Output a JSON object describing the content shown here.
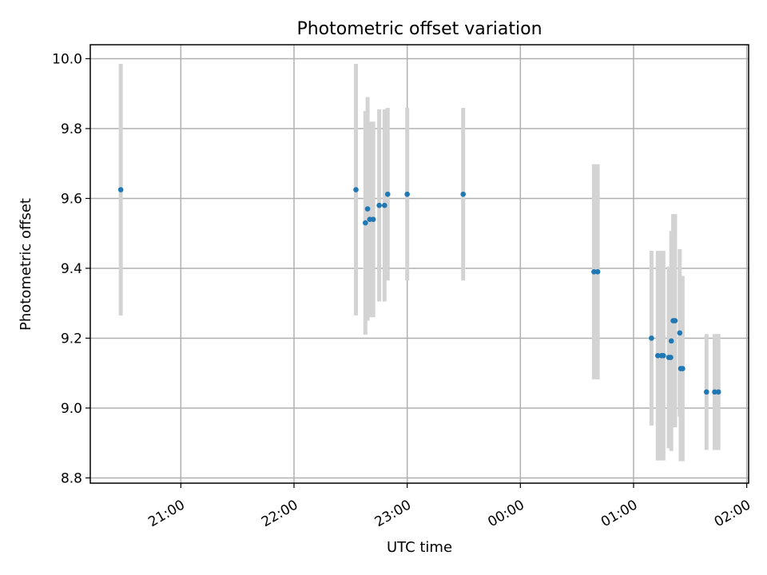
{
  "chart_data": {
    "type": "scatter",
    "title": "Photometric offset variation",
    "xlabel": "UTC time",
    "ylabel": "Photometric offset",
    "xlim": [
      "2000-01-01T20:12:00",
      "2000-01-02T02:01:00"
    ],
    "ylim": [
      8.785,
      10.04
    ],
    "grid": true,
    "xticks": [
      {
        "t": "2000-01-01T21:00:00",
        "label": "21:00"
      },
      {
        "t": "2000-01-01T22:00:00",
        "label": "22:00"
      },
      {
        "t": "2000-01-01T23:00:00",
        "label": "23:00"
      },
      {
        "t": "2000-01-02T00:00:00",
        "label": "00:00"
      },
      {
        "t": "2000-01-02T01:00:00",
        "label": "01:00"
      },
      {
        "t": "2000-01-02T02:00:00",
        "label": "02:00"
      }
    ],
    "yticks": [
      {
        "v": 8.8,
        "label": "8.8"
      },
      {
        "v": 9.0,
        "label": "9.0"
      },
      {
        "v": 9.2,
        "label": "9.2"
      },
      {
        "v": 9.4,
        "label": "9.4"
      },
      {
        "v": 9.6,
        "label": "9.6"
      },
      {
        "v": 9.8,
        "label": "9.8"
      },
      {
        "v": 10.0,
        "label": "10.0"
      }
    ],
    "points": [
      {
        "t": "2000-01-01T20:28:10",
        "y": 9.625,
        "err": 0.36
      },
      {
        "t": "2000-01-01T22:32:50",
        "y": 9.625,
        "err": 0.36
      },
      {
        "t": "2000-01-01T22:37:50",
        "y": 9.53,
        "err": 0.32
      },
      {
        "t": "2000-01-01T22:39:00",
        "y": 9.57,
        "err": 0.32
      },
      {
        "t": "2000-01-01T22:40:10",
        "y": 9.54,
        "err": 0.28
      },
      {
        "t": "2000-01-01T22:42:00",
        "y": 9.54,
        "err": 0.28
      },
      {
        "t": "2000-01-01T22:45:10",
        "y": 9.58,
        "err": 0.275
      },
      {
        "t": "2000-01-01T22:48:00",
        "y": 9.58,
        "err": 0.275
      },
      {
        "t": "2000-01-01T22:49:40",
        "y": 9.612,
        "err": 0.247
      },
      {
        "t": "2000-01-01T23:00:00",
        "y": 9.612,
        "err": 0.247
      },
      {
        "t": "2000-01-01T23:29:40",
        "y": 9.612,
        "err": 0.247
      },
      {
        "t": "2000-01-02T00:39:00",
        "y": 9.39,
        "err": 0.308
      },
      {
        "t": "2000-01-02T00:41:00",
        "y": 9.39,
        "err": 0.308
      },
      {
        "t": "2000-01-02T01:09:30",
        "y": 9.2,
        "err": 0.25
      },
      {
        "t": "2000-01-02T01:12:50",
        "y": 9.15,
        "err": 0.3
      },
      {
        "t": "2000-01-02T01:14:50",
        "y": 9.15,
        "err": 0.3
      },
      {
        "t": "2000-01-02T01:15:50",
        "y": 9.15,
        "err": 0.3
      },
      {
        "t": "2000-01-02T01:18:40",
        "y": 9.145,
        "err": 0.26
      },
      {
        "t": "2000-01-02T01:19:40",
        "y": 9.145,
        "err": 0.26
      },
      {
        "t": "2000-01-02T01:20:00",
        "y": 9.192,
        "err": 0.315
      },
      {
        "t": "2000-01-02T01:21:00",
        "y": 9.25,
        "err": 0.305
      },
      {
        "t": "2000-01-02T01:22:00",
        "y": 9.25,
        "err": 0.305
      },
      {
        "t": "2000-01-02T01:24:30",
        "y": 9.215,
        "err": 0.24
      },
      {
        "t": "2000-01-02T01:25:00",
        "y": 9.113,
        "err": 0.265
      },
      {
        "t": "2000-01-02T01:26:00",
        "y": 9.113,
        "err": 0.265
      },
      {
        "t": "2000-01-02T01:38:40",
        "y": 9.046,
        "err": 0.166
      },
      {
        "t": "2000-01-02T01:43:00",
        "y": 9.046,
        "err": 0.166
      },
      {
        "t": "2000-01-02T01:45:00",
        "y": 9.046,
        "err": 0.166
      }
    ],
    "colors": {
      "marker": "#1f77b4",
      "errorbar": "#d3d3d3",
      "grid": "#b0b0b0"
    }
  }
}
